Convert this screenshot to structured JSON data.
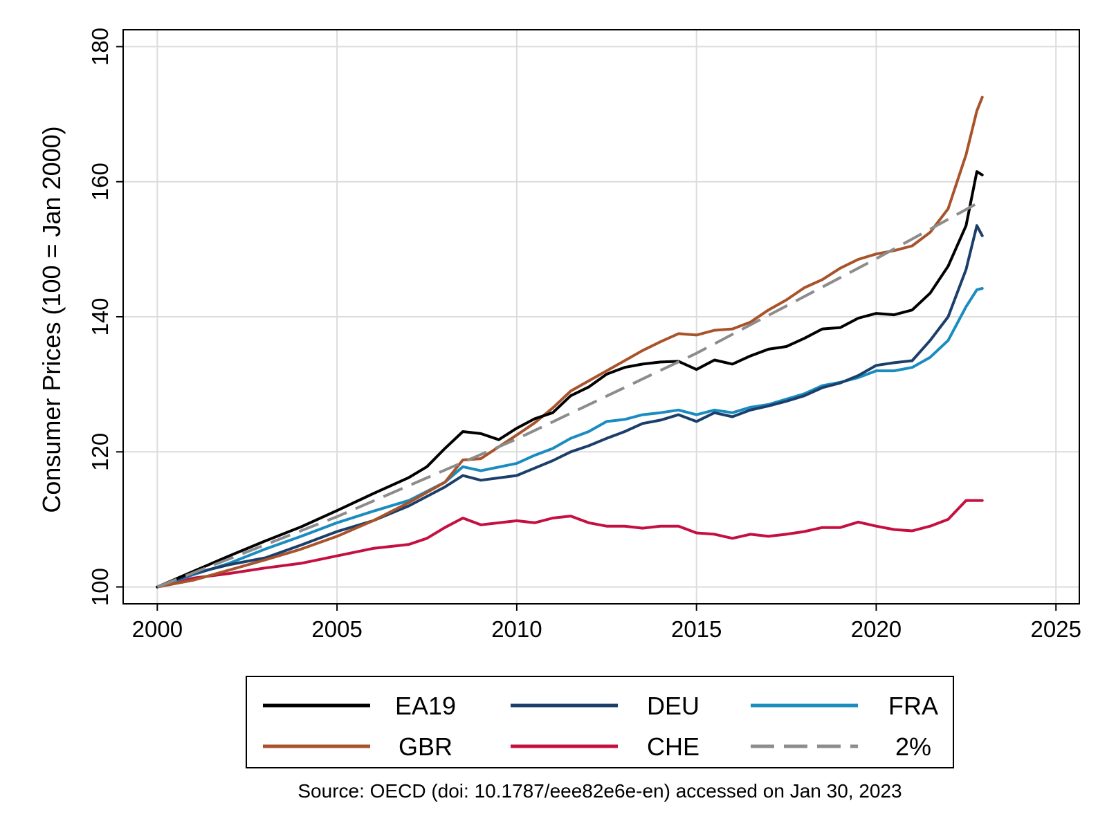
{
  "chart_data": {
    "type": "line",
    "title": "",
    "xlabel": "",
    "ylabel": "Consumer Prices (100 = Jan 2000)",
    "xlim": [
      2000,
      2025
    ],
    "ylim": [
      100,
      180
    ],
    "x_ticks": [
      "2000",
      "2005",
      "2010",
      "2015",
      "2020",
      "2025"
    ],
    "y_ticks": [
      "100",
      "120",
      "140",
      "160",
      "180"
    ],
    "grid": true,
    "legend_position": "bottom",
    "source": "Source: OECD (doi: 10.1787/eee82e6e-en) accessed on Jan 30, 2023",
    "series": [
      {
        "name": "EA19",
        "color": "#000000",
        "dash": false,
        "points": [
          [
            2000,
            100
          ],
          [
            2001,
            102.3
          ],
          [
            2002,
            104.6
          ],
          [
            2003,
            106.8
          ],
          [
            2004,
            108.9
          ],
          [
            2005,
            111.3
          ],
          [
            2006,
            113.8
          ],
          [
            2007,
            116.2
          ],
          [
            2007.5,
            117.8
          ],
          [
            2008,
            120.5
          ],
          [
            2008.5,
            123
          ],
          [
            2009,
            122.7
          ],
          [
            2009.5,
            121.8
          ],
          [
            2010,
            123.5
          ],
          [
            2010.5,
            124.9
          ],
          [
            2011,
            125.8
          ],
          [
            2011.5,
            128.3
          ],
          [
            2012,
            129.6
          ],
          [
            2012.5,
            131.5
          ],
          [
            2013,
            132.5
          ],
          [
            2013.5,
            133
          ],
          [
            2014,
            133.3
          ],
          [
            2014.5,
            133.4
          ],
          [
            2015,
            132.2
          ],
          [
            2015.5,
            133.6
          ],
          [
            2016,
            133
          ],
          [
            2016.5,
            134.2
          ],
          [
            2017,
            135.2
          ],
          [
            2017.5,
            135.6
          ],
          [
            2018,
            136.8
          ],
          [
            2018.5,
            138.2
          ],
          [
            2019,
            138.4
          ],
          [
            2019.5,
            139.8
          ],
          [
            2020,
            140.5
          ],
          [
            2020.5,
            140.3
          ],
          [
            2021,
            141
          ],
          [
            2021.5,
            143.5
          ],
          [
            2022,
            147.5
          ],
          [
            2022.5,
            153.5
          ],
          [
            2022.8,
            161.5
          ],
          [
            2022.95,
            161
          ]
        ]
      },
      {
        "name": "DEU",
        "color": "#1b3f6a",
        "dash": false,
        "points": [
          [
            2000,
            100
          ],
          [
            2001,
            102
          ],
          [
            2002,
            103.3
          ],
          [
            2003,
            104.3
          ],
          [
            2004,
            106.2
          ],
          [
            2005,
            108.2
          ],
          [
            2006,
            109.8
          ],
          [
            2007,
            112
          ],
          [
            2008,
            114.8
          ],
          [
            2008.5,
            116.5
          ],
          [
            2009,
            115.8
          ],
          [
            2010,
            116.5
          ],
          [
            2011,
            118.7
          ],
          [
            2011.5,
            120
          ],
          [
            2012,
            120.9
          ],
          [
            2012.5,
            122
          ],
          [
            2013,
            123
          ],
          [
            2013.5,
            124.2
          ],
          [
            2014,
            124.7
          ],
          [
            2014.5,
            125.5
          ],
          [
            2015,
            124.5
          ],
          [
            2015.5,
            125.8
          ],
          [
            2016,
            125.2
          ],
          [
            2016.5,
            126.2
          ],
          [
            2017,
            126.8
          ],
          [
            2017.5,
            127.5
          ],
          [
            2018,
            128.3
          ],
          [
            2018.5,
            129.5
          ],
          [
            2019,
            130.2
          ],
          [
            2019.5,
            131.3
          ],
          [
            2020,
            132.8
          ],
          [
            2020.5,
            133.2
          ],
          [
            2021,
            133.5
          ],
          [
            2021.5,
            136.5
          ],
          [
            2022,
            140
          ],
          [
            2022.5,
            147
          ],
          [
            2022.8,
            153.5
          ],
          [
            2022.95,
            152
          ]
        ]
      },
      {
        "name": "FRA",
        "color": "#1a8cc0",
        "dash": false,
        "points": [
          [
            2000,
            100
          ],
          [
            2001,
            101.8
          ],
          [
            2002,
            103.5
          ],
          [
            2003,
            105.6
          ],
          [
            2004,
            107.5
          ],
          [
            2005,
            109.5
          ],
          [
            2006,
            111.2
          ],
          [
            2007,
            112.8
          ],
          [
            2008,
            115.5
          ],
          [
            2008.5,
            117.8
          ],
          [
            2009,
            117.2
          ],
          [
            2010,
            118.3
          ],
          [
            2010.5,
            119.5
          ],
          [
            2011,
            120.5
          ],
          [
            2011.5,
            122
          ],
          [
            2012,
            123
          ],
          [
            2012.5,
            124.5
          ],
          [
            2013,
            124.8
          ],
          [
            2013.5,
            125.5
          ],
          [
            2014,
            125.8
          ],
          [
            2014.5,
            126.2
          ],
          [
            2015,
            125.5
          ],
          [
            2015.5,
            126.2
          ],
          [
            2016,
            125.8
          ],
          [
            2016.5,
            126.6
          ],
          [
            2017,
            127
          ],
          [
            2017.5,
            127.8
          ],
          [
            2018,
            128.6
          ],
          [
            2018.5,
            129.8
          ],
          [
            2019,
            130.3
          ],
          [
            2019.5,
            131
          ],
          [
            2020,
            132
          ],
          [
            2020.5,
            132
          ],
          [
            2021,
            132.5
          ],
          [
            2021.5,
            134
          ],
          [
            2022,
            136.5
          ],
          [
            2022.5,
            141.5
          ],
          [
            2022.8,
            144
          ],
          [
            2022.95,
            144.2
          ]
        ]
      },
      {
        "name": "GBR",
        "color": "#a8532a",
        "dash": false,
        "points": [
          [
            2000,
            100
          ],
          [
            2001,
            101
          ],
          [
            2002,
            102.5
          ],
          [
            2003,
            104
          ],
          [
            2004,
            105.6
          ],
          [
            2005,
            107.5
          ],
          [
            2006,
            109.8
          ],
          [
            2007,
            112.5
          ],
          [
            2008,
            115.5
          ],
          [
            2008.5,
            118.8
          ],
          [
            2009,
            119
          ],
          [
            2010,
            122.5
          ],
          [
            2010.5,
            124.3
          ],
          [
            2011,
            126.5
          ],
          [
            2011.5,
            129
          ],
          [
            2012,
            130.5
          ],
          [
            2012.5,
            132
          ],
          [
            2013,
            133.5
          ],
          [
            2013.5,
            135
          ],
          [
            2014,
            136.3
          ],
          [
            2014.5,
            137.5
          ],
          [
            2015,
            137.3
          ],
          [
            2015.5,
            138
          ],
          [
            2016,
            138.2
          ],
          [
            2016.5,
            139.2
          ],
          [
            2017,
            141
          ],
          [
            2017.5,
            142.5
          ],
          [
            2018,
            144.3
          ],
          [
            2018.5,
            145.5
          ],
          [
            2019,
            147.2
          ],
          [
            2019.5,
            148.5
          ],
          [
            2020,
            149.3
          ],
          [
            2020.5,
            149.8
          ],
          [
            2021,
            150.5
          ],
          [
            2021.5,
            152.5
          ],
          [
            2022,
            156
          ],
          [
            2022.5,
            164
          ],
          [
            2022.8,
            170.5
          ],
          [
            2022.95,
            172.5
          ]
        ]
      },
      {
        "name": "CHE",
        "color": "#c41040",
        "dash": false,
        "points": [
          [
            2000,
            100
          ],
          [
            2001,
            101.3
          ],
          [
            2002,
            102
          ],
          [
            2003,
            102.8
          ],
          [
            2004,
            103.5
          ],
          [
            2005,
            104.6
          ],
          [
            2006,
            105.7
          ],
          [
            2007,
            106.3
          ],
          [
            2007.5,
            107.2
          ],
          [
            2008,
            108.8
          ],
          [
            2008.5,
            110.2
          ],
          [
            2009,
            109.2
          ],
          [
            2010,
            109.8
          ],
          [
            2010.5,
            109.5
          ],
          [
            2011,
            110.2
          ],
          [
            2011.5,
            110.5
          ],
          [
            2012,
            109.5
          ],
          [
            2012.5,
            109
          ],
          [
            2013,
            109
          ],
          [
            2013.5,
            108.7
          ],
          [
            2014,
            109
          ],
          [
            2014.5,
            109
          ],
          [
            2015,
            108
          ],
          [
            2015.5,
            107.8
          ],
          [
            2016,
            107.2
          ],
          [
            2016.5,
            107.8
          ],
          [
            2017,
            107.5
          ],
          [
            2017.5,
            107.8
          ],
          [
            2018,
            108.2
          ],
          [
            2018.5,
            108.8
          ],
          [
            2019,
            108.8
          ],
          [
            2019.5,
            109.6
          ],
          [
            2020,
            109
          ],
          [
            2020.5,
            108.5
          ],
          [
            2021,
            108.3
          ],
          [
            2021.5,
            109
          ],
          [
            2022,
            110
          ],
          [
            2022.5,
            112.8
          ],
          [
            2022.95,
            112.8
          ]
        ]
      },
      {
        "name": "2%",
        "color": "#8c8c8c",
        "dash": true,
        "points": [
          [
            2000,
            100
          ],
          [
            2005,
            110.4
          ],
          [
            2010,
            121.9
          ],
          [
            2015,
            134.6
          ],
          [
            2020,
            148.6
          ],
          [
            2022.95,
            157.2
          ]
        ]
      }
    ]
  }
}
